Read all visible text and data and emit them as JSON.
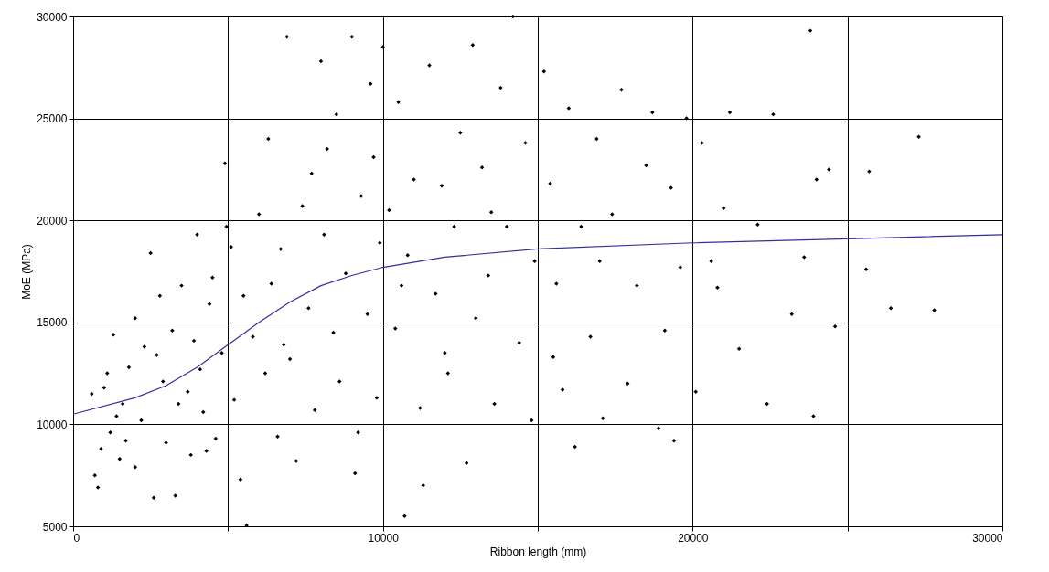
{
  "chart_data": {
    "type": "scatter",
    "xlabel": "Ribbon length (mm)",
    "ylabel": "MoE (MPa)",
    "xlim": [
      0,
      30000
    ],
    "ylim": [
      5000,
      30000
    ],
    "xticks": [
      0,
      {
        "value": 5000,
        "label": null
      },
      10000,
      {
        "value": 15000,
        "label": null
      },
      20000,
      {
        "value": 25000,
        "label": null
      },
      30000
    ],
    "yticks": [
      5000,
      10000,
      15000,
      20000,
      25000,
      30000
    ],
    "grid": true,
    "series": [
      {
        "type": "scatter",
        "color": "#000000",
        "marker": "diamond",
        "x": [
          700,
          800,
          900,
          1000,
          1100,
          1200,
          1300,
          1500,
          1600,
          1800,
          2000,
          2000,
          2200,
          2500,
          2600,
          2700,
          2900,
          3000,
          3200,
          3300,
          3500,
          3700,
          3800,
          4000,
          4100,
          4200,
          4400,
          4500,
          4600,
          4800,
          4900,
          4950,
          1400,
          2300,
          3400,
          1700,
          2800,
          3900,
          4300,
          600,
          5100,
          5200,
          5400,
          5600,
          5800,
          6000,
          6200,
          6300,
          6400,
          6600,
          6700,
          6900,
          7000,
          7200,
          7400,
          7600,
          7800,
          8000,
          8100,
          8200,
          8400,
          8600,
          8800,
          9000,
          9100,
          9300,
          9500,
          9600,
          9800,
          9900,
          10000,
          5500,
          6800,
          7700,
          8500,
          9200,
          9700,
          10200,
          10400,
          10500,
          10700,
          10800,
          11000,
          11200,
          11300,
          11500,
          11700,
          11900,
          12100,
          12300,
          12500,
          12700,
          12900,
          13000,
          13200,
          13400,
          13600,
          13800,
          14000,
          14200,
          14400,
          14600,
          14800,
          14900,
          10600,
          12000,
          13500,
          15200,
          15400,
          15600,
          15800,
          16000,
          16200,
          16400,
          16700,
          16900,
          17100,
          17400,
          17700,
          17900,
          18200,
          18500,
          18700,
          18900,
          19100,
          19300,
          19400,
          19600,
          19800,
          15500,
          17000,
          20100,
          20300,
          20600,
          20800,
          21200,
          21500,
          22100,
          22400,
          22600,
          23200,
          23800,
          23900,
          24000,
          24400,
          24600,
          25600,
          25700,
          26400,
          27300,
          27800,
          23600,
          21000
        ],
        "values": [
          7500,
          6900,
          8800,
          11800,
          12500,
          9600,
          14400,
          8300,
          11000,
          12800,
          7900,
          15200,
          10200,
          18400,
          6400,
          13400,
          12100,
          9100,
          14600,
          6500,
          16800,
          11600,
          8500,
          19300,
          12700,
          10600,
          15900,
          17200,
          9300,
          13500,
          22800,
          19700,
          10400,
          13800,
          11000,
          9200,
          16300,
          14100,
          8700,
          11500,
          18700,
          11200,
          7300,
          5050,
          14300,
          20300,
          12500,
          24000,
          16900,
          9400,
          18600,
          29000,
          13200,
          8200,
          20700,
          15700,
          10700,
          27800,
          19300,
          23500,
          14500,
          12100,
          17400,
          29000,
          7600,
          21200,
          15400,
          26700,
          11300,
          18900,
          28500,
          16300,
          13900,
          22300,
          25200,
          9600,
          23100,
          20500,
          14700,
          25800,
          5500,
          18300,
          22000,
          10800,
          7000,
          27600,
          16400,
          21700,
          12500,
          19700,
          24300,
          8100,
          28600,
          15200,
          22600,
          17300,
          11000,
          26500,
          19700,
          30000,
          14000,
          23800,
          10200,
          18000,
          16800,
          13500,
          20400,
          27300,
          21800,
          16900,
          11700,
          25500,
          8900,
          19700,
          14300,
          24000,
          10300,
          20300,
          26400,
          12000,
          16800,
          22700,
          25300,
          9800,
          14600,
          21600,
          9200,
          17700,
          25000,
          13300,
          18000,
          11600,
          23800,
          18000,
          16700,
          25300,
          13700,
          19800,
          11000,
          25200,
          15400,
          29300,
          10400,
          22000,
          22500,
          14800,
          17600,
          22400,
          15700,
          24100,
          15600,
          18200,
          20600
        ]
      },
      {
        "type": "line",
        "color": "#3030a0",
        "x": [
          0,
          2000,
          3000,
          4000,
          5000,
          6000,
          7000,
          8000,
          9000,
          10000,
          12000,
          15000,
          20000,
          25000,
          30000
        ],
        "values": [
          10500,
          11300,
          11900,
          12800,
          13900,
          15000,
          16000,
          16800,
          17300,
          17700,
          18200,
          18600,
          18900,
          19100,
          19300
        ]
      }
    ]
  }
}
